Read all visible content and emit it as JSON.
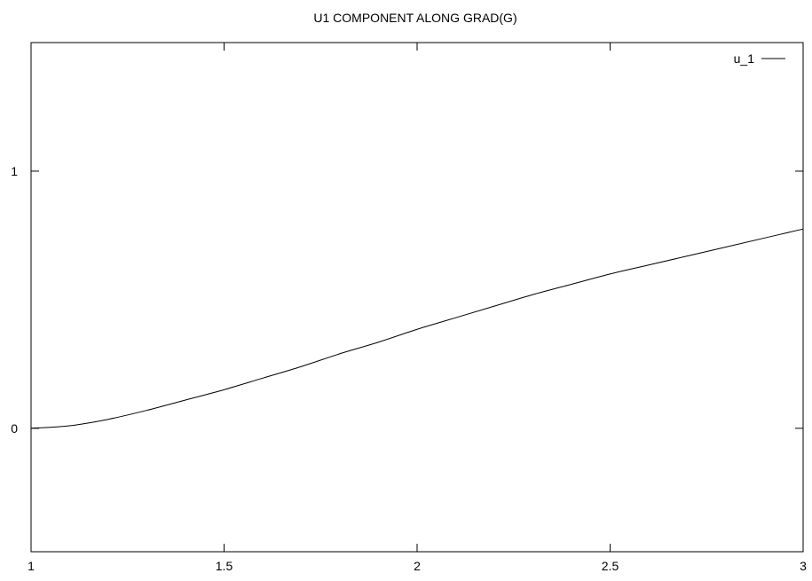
{
  "chart_data": {
    "type": "line",
    "title": "U1 COMPONENT ALONG GRAD(G)",
    "xlabel": "",
    "ylabel": "",
    "xlim": [
      1,
      3
    ],
    "ylim": [
      -0.48,
      1.5
    ],
    "x_ticks": [
      1,
      1.5,
      2,
      2.5,
      3
    ],
    "x_tick_labels": [
      "1",
      "1.5",
      "2",
      "2.5",
      "3"
    ],
    "y_ticks": [
      0,
      1
    ],
    "y_tick_labels": [
      "0",
      "1"
    ],
    "grid": false,
    "legend_position": "top-right",
    "colors": {
      "line": "#000000",
      "axes": "#000000",
      "background": "#ffffff"
    },
    "series": [
      {
        "name": "u_1",
        "x": [
          1.0,
          1.1,
          1.2,
          1.3,
          1.4,
          1.5,
          1.6,
          1.7,
          1.8,
          1.9,
          2.0,
          2.1,
          2.2,
          2.3,
          2.4,
          2.5,
          2.6,
          2.7,
          2.8,
          2.9,
          3.0
        ],
        "y": [
          0.0,
          0.01,
          0.035,
          0.07,
          0.11,
          0.15,
          0.195,
          0.24,
          0.29,
          0.335,
          0.385,
          0.43,
          0.475,
          0.52,
          0.56,
          0.6,
          0.635,
          0.67,
          0.705,
          0.74,
          0.775
        ]
      }
    ]
  }
}
